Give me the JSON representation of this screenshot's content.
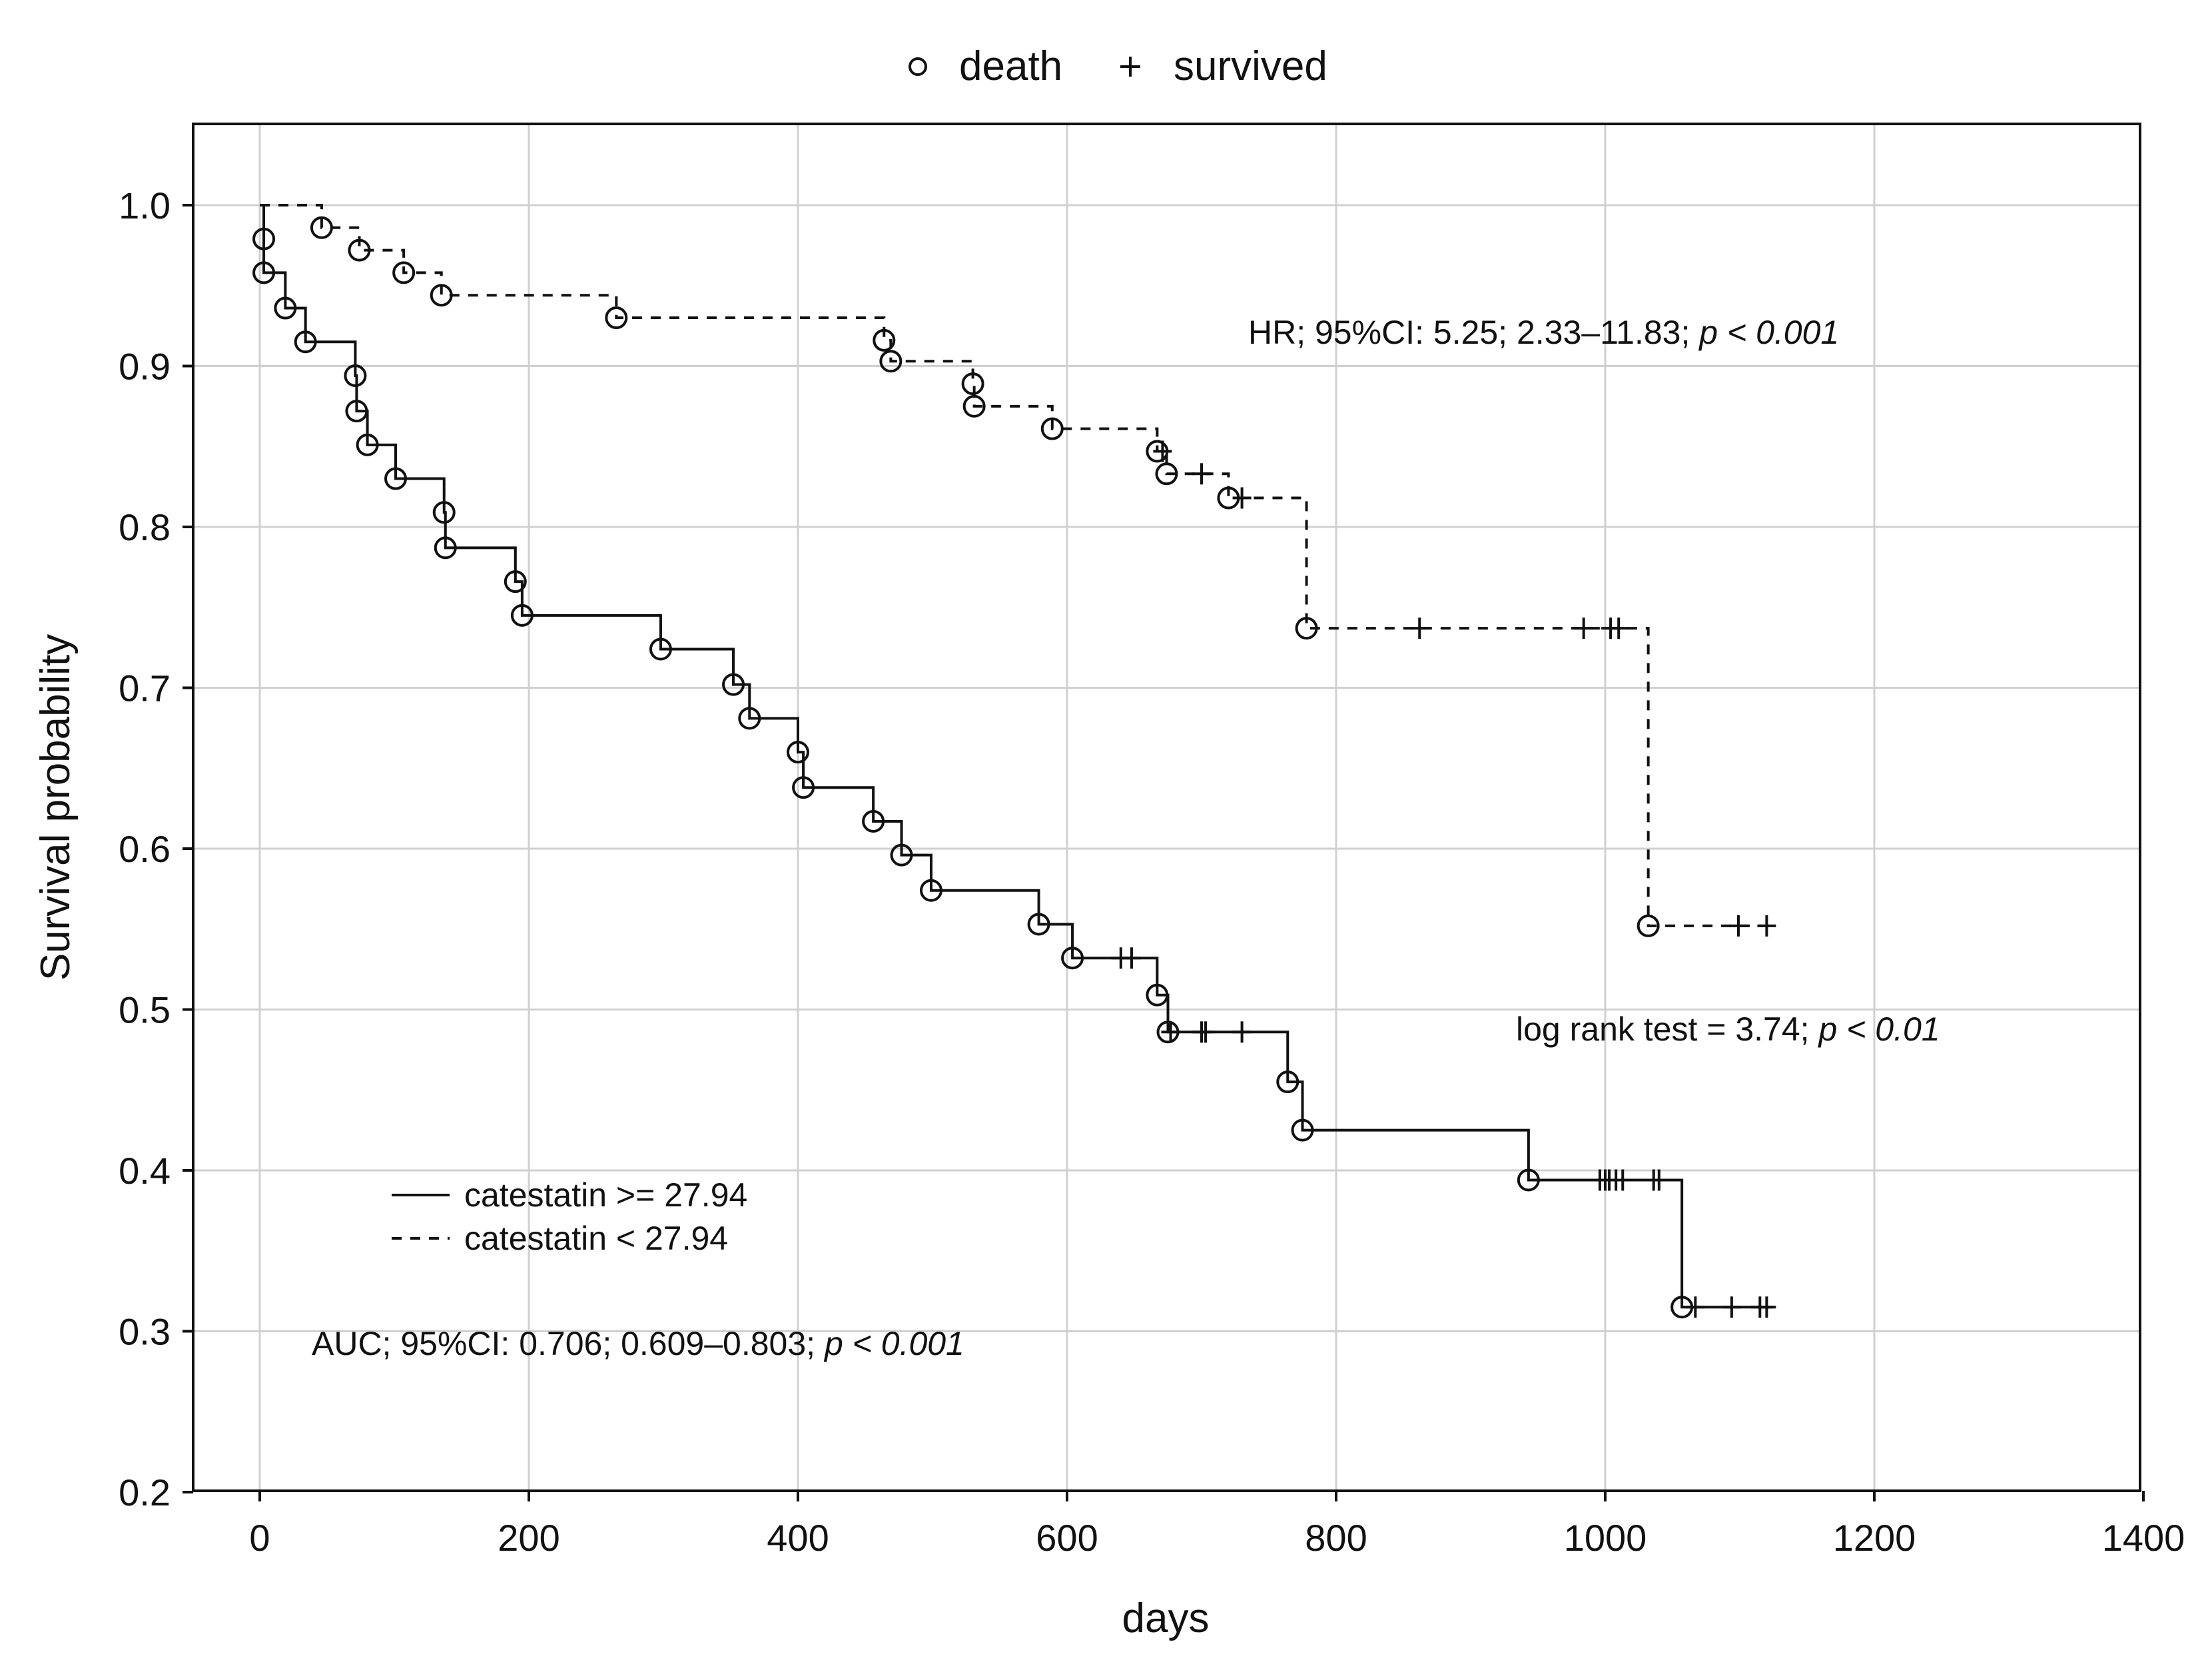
{
  "chart_data": {
    "type": "line",
    "subtype": "kaplan-meier",
    "title": "",
    "xlabel": "days",
    "ylabel": "Survival probability",
    "xlim": [
      -50,
      1400
    ],
    "ylim": [
      0.2,
      1.05
    ],
    "xticks": [
      0,
      200,
      400,
      600,
      800,
      1000,
      1200,
      1400
    ],
    "yticks": [
      0.2,
      0.3,
      0.4,
      0.5,
      0.6,
      0.7,
      0.8,
      0.9,
      1.0
    ],
    "xtick_labels": [
      "0",
      "200",
      "400",
      "600",
      "800",
      "1000",
      "1200",
      "1400"
    ],
    "ytick_labels": [
      "0.2",
      "0.3",
      "0.4",
      "0.5",
      "0.6",
      "0.7",
      "0.8",
      "0.9",
      "1.0"
    ],
    "grid": true,
    "marker_legend": {
      "position": "top-center",
      "death_label": "death",
      "survived_label": "survived"
    },
    "line_legend": {
      "position": "lower-left",
      "items": [
        {
          "label": "catestatin >= 27.94",
          "style": "solid"
        },
        {
          "label": "catestatin < 27.94",
          "style": "dashed"
        }
      ]
    },
    "annotations": {
      "hr": {
        "text": "HR; 95%CI: 5.25; 2.33–11.83; ",
        "p": "p < 0.001"
      },
      "logrank": {
        "text": "log rank test = 3.74; ",
        "p": "p < 0.01"
      },
      "auc": {
        "text": "AUC; 95%CI: 0.706; 0.609–0.803; ",
        "p": "p < 0.001"
      }
    },
    "series": [
      {
        "name": "catestatin >= 27.94",
        "style": "solid",
        "start": [
          0,
          1.0
        ],
        "steps": [
          [
            3,
            0.979
          ],
          [
            3,
            0.958
          ],
          [
            19,
            0.936
          ],
          [
            34,
            0.915
          ],
          [
            71,
            0.894
          ],
          [
            72,
            0.872
          ],
          [
            80,
            0.851
          ],
          [
            101,
            0.83
          ],
          [
            137,
            0.809
          ],
          [
            138,
            0.787
          ],
          [
            190,
            0.766
          ],
          [
            195,
            0.745
          ],
          [
            298,
            0.724
          ],
          [
            352,
            0.702
          ],
          [
            364,
            0.681
          ],
          [
            400,
            0.66
          ],
          [
            404,
            0.638
          ],
          [
            456,
            0.617
          ],
          [
            477,
            0.596
          ],
          [
            499,
            0.574
          ],
          [
            579,
            0.553
          ],
          [
            604,
            0.532
          ],
          [
            667,
            0.509
          ],
          [
            675,
            0.486
          ],
          [
            764,
            0.455
          ],
          [
            775,
            0.425
          ],
          [
            943,
            0.394
          ],
          [
            1057,
            0.315
          ]
        ],
        "end_x": 1125,
        "deaths": [
          [
            3,
            0.979
          ],
          [
            3,
            0.958
          ],
          [
            19,
            0.936
          ],
          [
            34,
            0.915
          ],
          [
            71,
            0.894
          ],
          [
            72,
            0.872
          ],
          [
            80,
            0.851
          ],
          [
            101,
            0.83
          ],
          [
            137,
            0.809
          ],
          [
            138,
            0.787
          ],
          [
            190,
            0.766
          ],
          [
            195,
            0.745
          ],
          [
            298,
            0.724
          ],
          [
            352,
            0.702
          ],
          [
            364,
            0.681
          ],
          [
            400,
            0.66
          ],
          [
            404,
            0.638
          ],
          [
            456,
            0.617
          ],
          [
            477,
            0.596
          ],
          [
            499,
            0.574
          ],
          [
            579,
            0.553
          ],
          [
            604,
            0.532
          ],
          [
            667,
            0.509
          ],
          [
            675,
            0.486
          ],
          [
            764,
            0.455
          ],
          [
            775,
            0.425
          ],
          [
            943,
            0.394
          ],
          [
            1057,
            0.315
          ]
        ],
        "censored": [
          [
            640,
            0.532
          ],
          [
            648,
            0.532
          ],
          [
            677,
            0.486
          ],
          [
            700,
            0.486
          ],
          [
            703,
            0.486
          ],
          [
            730,
            0.486
          ],
          [
            996,
            0.394
          ],
          [
            1000,
            0.394
          ],
          [
            1003,
            0.394
          ],
          [
            1008,
            0.394
          ],
          [
            1013,
            0.394
          ],
          [
            1036,
            0.394
          ],
          [
            1040,
            0.394
          ],
          [
            1067,
            0.315
          ],
          [
            1094,
            0.315
          ],
          [
            1115,
            0.315
          ],
          [
            1120,
            0.315
          ]
        ]
      },
      {
        "name": "catestatin < 27.94",
        "style": "dashed",
        "start": [
          0,
          1.0
        ],
        "steps": [
          [
            46,
            0.986
          ],
          [
            74,
            0.972
          ],
          [
            107,
            0.958
          ],
          [
            135,
            0.944
          ],
          [
            265,
            0.93
          ],
          [
            464,
            0.916
          ],
          [
            469,
            0.903
          ],
          [
            530,
            0.889
          ],
          [
            531,
            0.875
          ],
          [
            589,
            0.861
          ],
          [
            667,
            0.847
          ],
          [
            674,
            0.833
          ],
          [
            720,
            0.818
          ],
          [
            778,
            0.737
          ],
          [
            1032,
            0.552
          ]
        ],
        "end_x": 1125,
        "deaths": [
          [
            46,
            0.986
          ],
          [
            74,
            0.972
          ],
          [
            107,
            0.958
          ],
          [
            135,
            0.944
          ],
          [
            265,
            0.93
          ],
          [
            464,
            0.916
          ],
          [
            469,
            0.903
          ],
          [
            530,
            0.889
          ],
          [
            531,
            0.875
          ],
          [
            589,
            0.861
          ],
          [
            667,
            0.847
          ],
          [
            674,
            0.833
          ],
          [
            720,
            0.818
          ],
          [
            778,
            0.737
          ],
          [
            1032,
            0.552
          ]
        ],
        "censored": [
          [
            671,
            0.847
          ],
          [
            700,
            0.833
          ],
          [
            730,
            0.818
          ],
          [
            862,
            0.737
          ],
          [
            984,
            0.737
          ],
          [
            1004,
            0.737
          ],
          [
            1010,
            0.737
          ],
          [
            1099,
            0.552
          ],
          [
            1120,
            0.552
          ]
        ]
      }
    ]
  }
}
